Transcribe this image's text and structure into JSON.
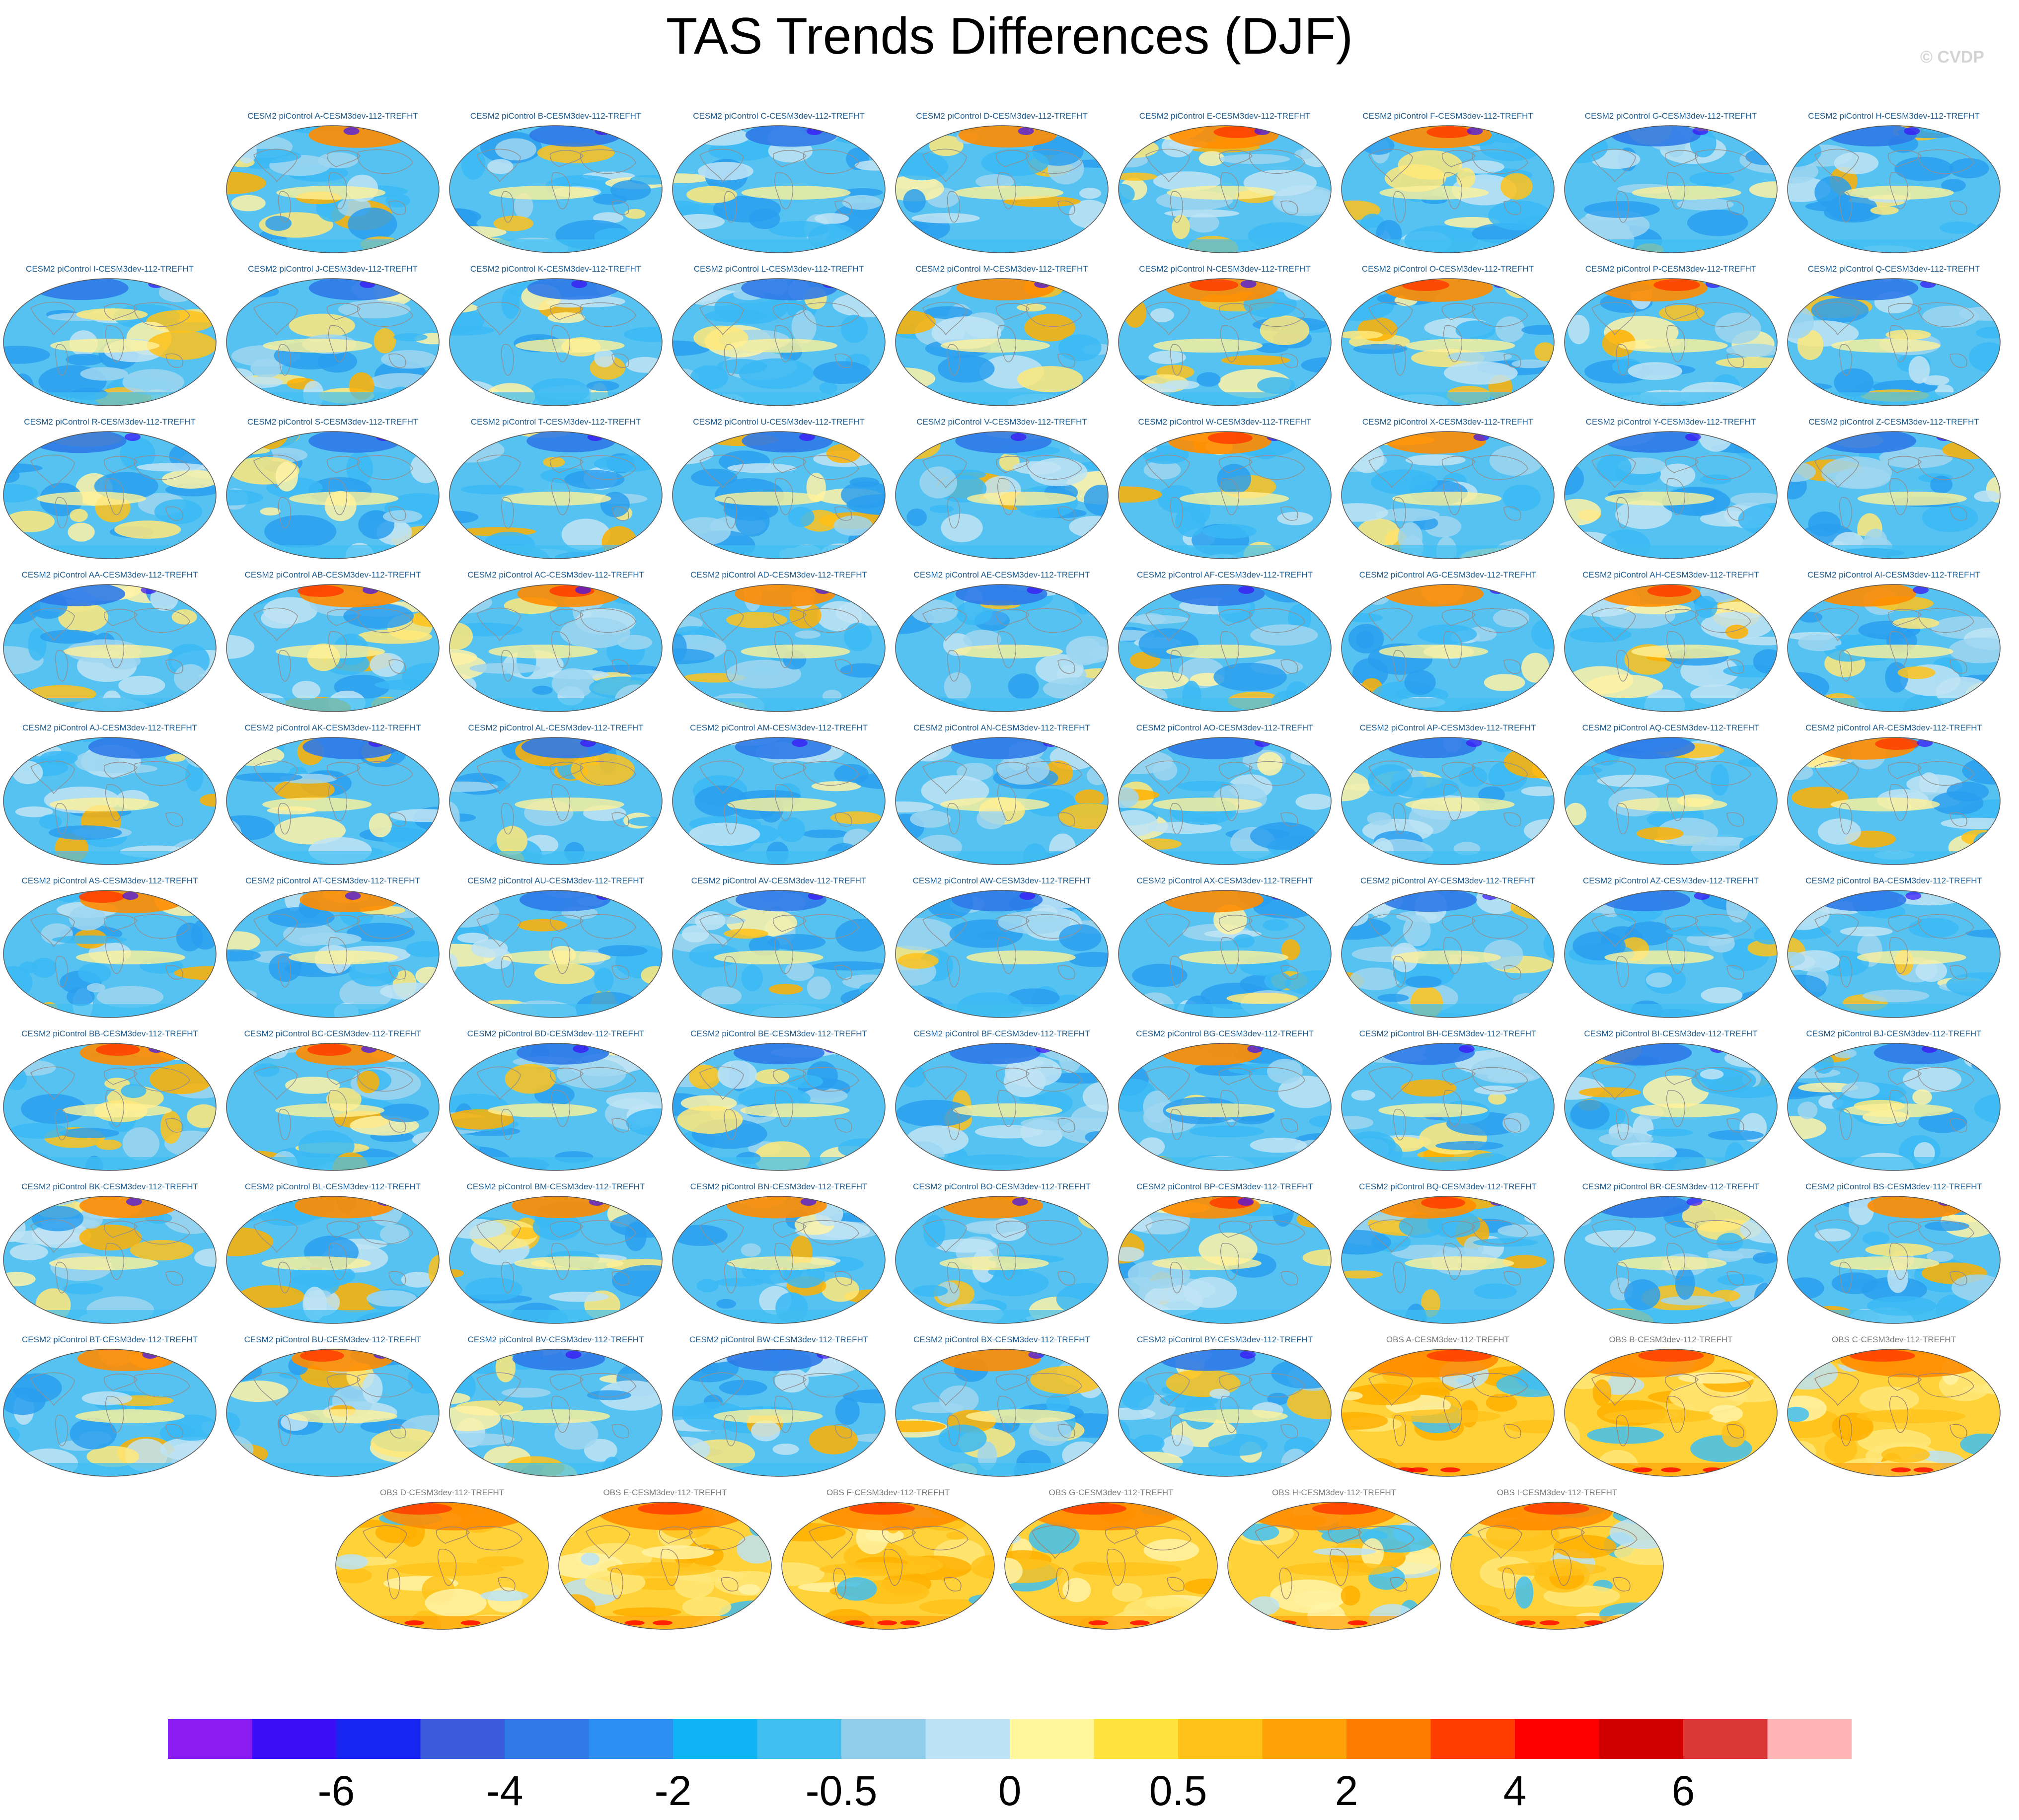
{
  "title": "TAS Trends Differences (DJF)",
  "credit": "© CVDP",
  "chart_data": {
    "type": "heatmap",
    "title": "TAS Trends Differences (DJF)",
    "projection": "global ellipse map",
    "panels": [
      {
        "label": "CESM2 piControl A-CESM3dev-112-TREFHT",
        "kind": "model",
        "warm": 0.35
      },
      {
        "label": "CESM2 piControl B-CESM3dev-112-TREFHT",
        "kind": "model",
        "warm": 0.25
      },
      {
        "label": "CESM2 piControl C-CESM3dev-112-TREFHT",
        "kind": "model",
        "warm": 0.25
      },
      {
        "label": "CESM2 piControl D-CESM3dev-112-TREFHT",
        "kind": "model",
        "warm": 0.32
      },
      {
        "label": "CESM2 piControl E-CESM3dev-112-TREFHT",
        "kind": "model",
        "warm": 0.45
      },
      {
        "label": "CESM2 piControl F-CESM3dev-112-TREFHT",
        "kind": "model",
        "warm": 0.38
      },
      {
        "label": "CESM2 piControl G-CESM3dev-112-TREFHT",
        "kind": "model",
        "warm": 0.22
      },
      {
        "label": "CESM2 piControl H-CESM3dev-112-TREFHT",
        "kind": "model",
        "warm": 0.22
      },
      {
        "label": "CESM2 piControl I-CESM3dev-112-TREFHT",
        "kind": "model",
        "warm": 0.28
      },
      {
        "label": "CESM2 piControl J-CESM3dev-112-TREFHT",
        "kind": "model",
        "warm": 0.3
      },
      {
        "label": "CESM2 piControl K-CESM3dev-112-TREFHT",
        "kind": "model",
        "warm": 0.25
      },
      {
        "label": "CESM2 piControl L-CESM3dev-112-TREFHT",
        "kind": "model",
        "warm": 0.3
      },
      {
        "label": "CESM2 piControl M-CESM3dev-112-TREFHT",
        "kind": "model",
        "warm": 0.32
      },
      {
        "label": "CESM2 piControl N-CESM3dev-112-TREFHT",
        "kind": "model",
        "warm": 0.48
      },
      {
        "label": "CESM2 piControl O-CESM3dev-112-TREFHT",
        "kind": "model",
        "warm": 0.45
      },
      {
        "label": "CESM2 piControl P-CESM3dev-112-TREFHT",
        "kind": "model",
        "warm": 0.42
      },
      {
        "label": "CESM2 piControl Q-CESM3dev-112-TREFHT",
        "kind": "model",
        "warm": 0.3
      },
      {
        "label": "CESM2 piControl R-CESM3dev-112-TREFHT",
        "kind": "model",
        "warm": 0.28
      },
      {
        "label": "CESM2 piControl S-CESM3dev-112-TREFHT",
        "kind": "model",
        "warm": 0.26
      },
      {
        "label": "CESM2 piControl T-CESM3dev-112-TREFHT",
        "kind": "model",
        "warm": 0.22
      },
      {
        "label": "CESM2 piControl U-CESM3dev-112-TREFHT",
        "kind": "model",
        "warm": 0.24
      },
      {
        "label": "CESM2 piControl V-CESM3dev-112-TREFHT",
        "kind": "model",
        "warm": 0.3
      },
      {
        "label": "CESM2 piControl W-CESM3dev-112-TREFHT",
        "kind": "model",
        "warm": 0.38
      },
      {
        "label": "CESM2 piControl X-CESM3dev-112-TREFHT",
        "kind": "model",
        "warm": 0.35
      },
      {
        "label": "CESM2 piControl Y-CESM3dev-112-TREFHT",
        "kind": "model",
        "warm": 0.26
      },
      {
        "label": "CESM2 piControl Z-CESM3dev-112-TREFHT",
        "kind": "model",
        "warm": 0.3
      },
      {
        "label": "CESM2 piControl AA-CESM3dev-112-TREFHT",
        "kind": "model",
        "warm": 0.3
      },
      {
        "label": "CESM2 piControl AB-CESM3dev-112-TREFHT",
        "kind": "model",
        "warm": 0.42
      },
      {
        "label": "CESM2 piControl AC-CESM3dev-112-TREFHT",
        "kind": "model",
        "warm": 0.38
      },
      {
        "label": "CESM2 piControl AD-CESM3dev-112-TREFHT",
        "kind": "model",
        "warm": 0.35
      },
      {
        "label": "CESM2 piControl AE-CESM3dev-112-TREFHT",
        "kind": "model",
        "warm": 0.25
      },
      {
        "label": "CESM2 piControl AF-CESM3dev-112-TREFHT",
        "kind": "model",
        "warm": 0.28
      },
      {
        "label": "CESM2 piControl AG-CESM3dev-112-TREFHT",
        "kind": "model",
        "warm": 0.34
      },
      {
        "label": "CESM2 piControl AH-CESM3dev-112-TREFHT",
        "kind": "model",
        "warm": 0.36
      },
      {
        "label": "CESM2 piControl AI-CESM3dev-112-TREFHT",
        "kind": "model",
        "warm": 0.34
      },
      {
        "label": "CESM2 piControl AJ-CESM3dev-112-TREFHT",
        "kind": "model",
        "warm": 0.26
      },
      {
        "label": "CESM2 piControl AK-CESM3dev-112-TREFHT",
        "kind": "model",
        "warm": 0.3
      },
      {
        "label": "CESM2 piControl AL-CESM3dev-112-TREFHT",
        "kind": "model",
        "warm": 0.24
      },
      {
        "label": "CESM2 piControl AM-CESM3dev-112-TREFHT",
        "kind": "model",
        "warm": 0.3
      },
      {
        "label": "CESM2 piControl AN-CESM3dev-112-TREFHT",
        "kind": "model",
        "warm": 0.3
      },
      {
        "label": "CESM2 piControl AO-CESM3dev-112-TREFHT",
        "kind": "model",
        "warm": 0.3
      },
      {
        "label": "CESM2 piControl AP-CESM3dev-112-TREFHT",
        "kind": "model",
        "warm": 0.22
      },
      {
        "label": "CESM2 piControl AQ-CESM3dev-112-TREFHT",
        "kind": "model",
        "warm": 0.28
      },
      {
        "label": "CESM2 piControl AR-CESM3dev-112-TREFHT",
        "kind": "model",
        "warm": 0.36
      },
      {
        "label": "CESM2 piControl AS-CESM3dev-112-TREFHT",
        "kind": "model",
        "warm": 0.4
      },
      {
        "label": "CESM2 piControl AT-CESM3dev-112-TREFHT",
        "kind": "model",
        "warm": 0.32
      },
      {
        "label": "CESM2 piControl AU-CESM3dev-112-TREFHT",
        "kind": "model",
        "warm": 0.24
      },
      {
        "label": "CESM2 piControl AV-CESM3dev-112-TREFHT",
        "kind": "model",
        "warm": 0.24
      },
      {
        "label": "CESM2 piControl AW-CESM3dev-112-TREFHT",
        "kind": "model",
        "warm": 0.24
      },
      {
        "label": "CESM2 piControl AX-CESM3dev-112-TREFHT",
        "kind": "model",
        "warm": 0.34
      },
      {
        "label": "CESM2 piControl AY-CESM3dev-112-TREFHT",
        "kind": "model",
        "warm": 0.28
      },
      {
        "label": "CESM2 piControl AZ-CESM3dev-112-TREFHT",
        "kind": "model",
        "warm": 0.22
      },
      {
        "label": "CESM2 piControl BA-CESM3dev-112-TREFHT",
        "kind": "model",
        "warm": 0.22
      },
      {
        "label": "CESM2 piControl BB-CESM3dev-112-TREFHT",
        "kind": "model",
        "warm": 0.36
      },
      {
        "label": "CESM2 piControl BC-CESM3dev-112-TREFHT",
        "kind": "model",
        "warm": 0.36
      },
      {
        "label": "CESM2 piControl BD-CESM3dev-112-TREFHT",
        "kind": "model",
        "warm": 0.26
      },
      {
        "label": "CESM2 piControl BE-CESM3dev-112-TREFHT",
        "kind": "model",
        "warm": 0.24
      },
      {
        "label": "CESM2 piControl BF-CESM3dev-112-TREFHT",
        "kind": "model",
        "warm": 0.24
      },
      {
        "label": "CESM2 piControl BG-CESM3dev-112-TREFHT",
        "kind": "model",
        "warm": 0.34
      },
      {
        "label": "CESM2 piControl BH-CESM3dev-112-TREFHT",
        "kind": "model",
        "warm": 0.28
      },
      {
        "label": "CESM2 piControl BI-CESM3dev-112-TREFHT",
        "kind": "model",
        "warm": 0.3
      },
      {
        "label": "CESM2 piControl BJ-CESM3dev-112-TREFHT",
        "kind": "model",
        "warm": 0.24
      },
      {
        "label": "CESM2 piControl BK-CESM3dev-112-TREFHT",
        "kind": "model",
        "warm": 0.32
      },
      {
        "label": "CESM2 piControl BL-CESM3dev-112-TREFHT",
        "kind": "model",
        "warm": 0.34
      },
      {
        "label": "CESM2 piControl BM-CESM3dev-112-TREFHT",
        "kind": "model",
        "warm": 0.32
      },
      {
        "label": "CESM2 piControl BN-CESM3dev-112-TREFHT",
        "kind": "model",
        "warm": 0.34
      },
      {
        "label": "CESM2 piControl BO-CESM3dev-112-TREFHT",
        "kind": "model",
        "warm": 0.34
      },
      {
        "label": "CESM2 piControl BP-CESM3dev-112-TREFHT",
        "kind": "model",
        "warm": 0.36
      },
      {
        "label": "CESM2 piControl BQ-CESM3dev-112-TREFHT",
        "kind": "model",
        "warm": 0.36
      },
      {
        "label": "CESM2 piControl BR-CESM3dev-112-TREFHT",
        "kind": "model",
        "warm": 0.3
      },
      {
        "label": "CESM2 piControl BS-CESM3dev-112-TREFHT",
        "kind": "model",
        "warm": 0.34
      },
      {
        "label": "CESM2 piControl BT-CESM3dev-112-TREFHT",
        "kind": "model",
        "warm": 0.32
      },
      {
        "label": "CESM2 piControl BU-CESM3dev-112-TREFHT",
        "kind": "model",
        "warm": 0.36
      },
      {
        "label": "CESM2 piControl BV-CESM3dev-112-TREFHT",
        "kind": "model",
        "warm": 0.26
      },
      {
        "label": "CESM2 piControl BW-CESM3dev-112-TREFHT",
        "kind": "model",
        "warm": 0.3
      },
      {
        "label": "CESM2 piControl BX-CESM3dev-112-TREFHT",
        "kind": "model",
        "warm": 0.34
      },
      {
        "label": "CESM2 piControl BY-CESM3dev-112-TREFHT",
        "kind": "model",
        "warm": 0.3
      },
      {
        "label": "OBS A-CESM3dev-112-TREFHT",
        "kind": "obs",
        "warm": 0.78
      },
      {
        "label": "OBS B-CESM3dev-112-TREFHT",
        "kind": "obs",
        "warm": 0.8
      },
      {
        "label": "OBS C-CESM3dev-112-TREFHT",
        "kind": "obs",
        "warm": 0.8
      },
      {
        "label": "OBS D-CESM3dev-112-TREFHT",
        "kind": "obs",
        "warm": 0.8
      },
      {
        "label": "OBS E-CESM3dev-112-TREFHT",
        "kind": "obs",
        "warm": 0.8
      },
      {
        "label": "OBS F-CESM3dev-112-TREFHT",
        "kind": "obs",
        "warm": 0.86
      },
      {
        "label": "OBS G-CESM3dev-112-TREFHT",
        "kind": "obs",
        "warm": 0.86
      },
      {
        "label": "OBS H-CESM3dev-112-TREFHT",
        "kind": "obs",
        "warm": 0.86
      },
      {
        "label": "OBS I-CESM3dev-112-TREFHT",
        "kind": "obs",
        "warm": 0.86
      }
    ],
    "colorbar": {
      "colors": [
        "#8a1cf0",
        "#3a0ff5",
        "#1725f0",
        "#3a5cdc",
        "#2f7ae8",
        "#2a8ff0",
        "#0fb4f7",
        "#40bff2",
        "#8fcfec",
        "#bce3f5",
        "#fff799",
        "#ffe23d",
        "#ffc21a",
        "#ffa20a",
        "#ff7c00",
        "#ff3d00",
        "#ff0000",
        "#d10000",
        "#d93636",
        "#ffb3b3"
      ],
      "tick_labels": [
        "-6",
        "-4",
        "-2",
        "-0.5",
        "0",
        "0.5",
        "2",
        "4",
        "6"
      ],
      "tick_boundaries": [
        2,
        4,
        6,
        8,
        10,
        12,
        14,
        16,
        18
      ]
    }
  }
}
